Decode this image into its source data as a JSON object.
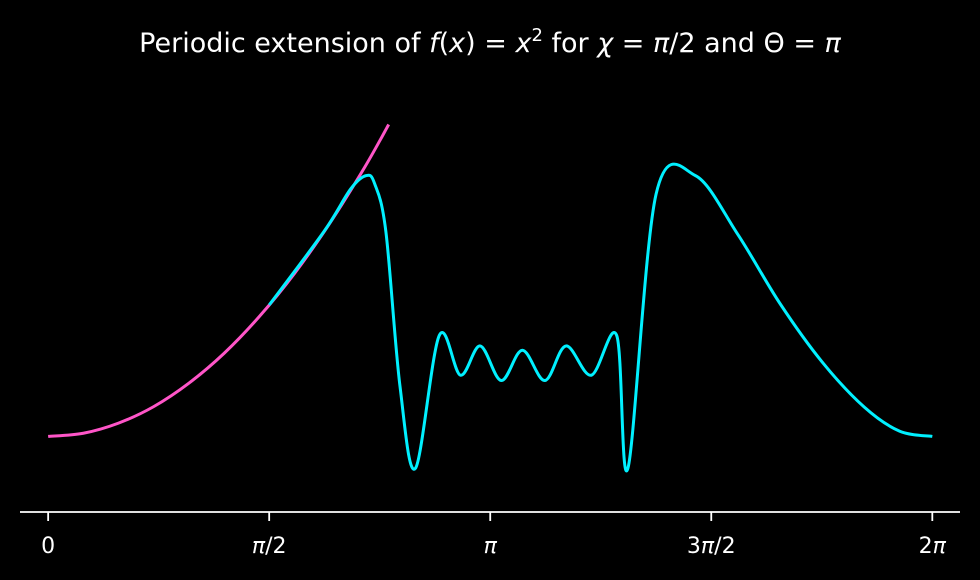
{
  "chart_data": {
    "type": "line",
    "title_parts": [
      "Periodic extension of ",
      "f",
      "(",
      "x",
      ") = ",
      "x",
      "2",
      " for ",
      "χ",
      " = ",
      "π",
      "/2 and Θ = ",
      "π"
    ],
    "xlabel": "",
    "ylabel": "",
    "xlim": [
      -0.2,
      6.48
    ],
    "ylim": [
      -1.42,
      8.2
    ],
    "grid": false,
    "legend": "none",
    "x_ticks": [
      {
        "value": 0,
        "label": "0"
      },
      {
        "value": 1.5708,
        "label": "π/2"
      },
      {
        "value": 3.1416,
        "label": "π"
      },
      {
        "value": 4.7124,
        "label": "3π/2"
      },
      {
        "value": 6.2832,
        "label": "2π"
      }
    ],
    "series": [
      {
        "color": "#ff55c8",
        "x": [
          0,
          0.25,
          0.5,
          0.75,
          1.0,
          1.25,
          1.5,
          1.75,
          2.0,
          2.25,
          2.42
        ],
        "y": [
          0,
          0.06,
          0.25,
          0.56,
          1.0,
          1.56,
          2.25,
          3.06,
          4.0,
          5.06,
          5.86
        ]
      },
      {
        "color": "#00f0ff",
        "x": [
          1.571,
          1.96,
          2.15,
          2.26,
          2.32,
          2.4,
          2.5,
          2.61,
          2.78,
          2.93,
          3.07,
          3.22,
          3.37,
          3.53,
          3.68,
          3.86,
          4.04,
          4.12,
          4.32,
          4.6,
          4.9,
          5.2,
          5.5,
          5.8,
          6.05,
          6.2832
        ],
        "y": [
          2.47,
          3.85,
          4.65,
          4.9,
          4.75,
          3.85,
          0.95,
          -0.6,
          1.9,
          1.15,
          1.7,
          1.05,
          1.62,
          1.05,
          1.7,
          1.15,
          1.9,
          -0.6,
          4.55,
          4.9,
          3.8,
          2.5,
          1.4,
          0.55,
          0.1,
          0.0
        ]
      }
    ],
    "colors": {
      "background": "#000000",
      "axis": "#ffffff",
      "text": "#ffffff"
    }
  }
}
